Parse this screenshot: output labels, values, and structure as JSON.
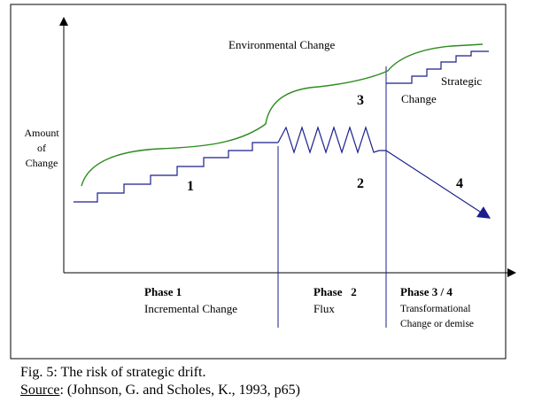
{
  "figure": {
    "environment_label": "Environmental Change",
    "strategic_label_line1": "Strategic",
    "strategic_label_line2": "Change",
    "y_axis_line1": "Amount",
    "y_axis_line2": "of",
    "y_axis_line3": "Change",
    "region_numbers": [
      "1",
      "2",
      "3",
      "4"
    ],
    "phases": [
      {
        "title": "Phase 1",
        "subtitle": "Incremental Change"
      },
      {
        "title": "Phase   2",
        "subtitle": "Flux"
      },
      {
        "title": "Phase 3 / 4",
        "subtitle_line1": "Transformational",
        "subtitle_line2": "Change or demise"
      }
    ],
    "colors": {
      "environment_curve": "#2e8b1f",
      "strategy_line": "#1a1f8c",
      "axes": "#000000",
      "frame": "#000000"
    }
  },
  "caption": {
    "line1": "Fig. 5: The risk of strategic drift.",
    "source_word": "Source",
    "source_rest": ": (Johnson, G. and Scholes, K., 1993, p65)"
  }
}
